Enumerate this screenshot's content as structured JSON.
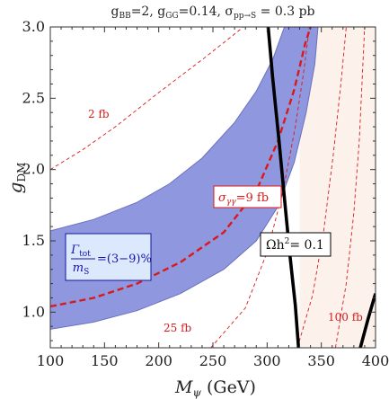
{
  "chart_data": {
    "type": "line",
    "title": "g_BB=2, g_GG=0.14, σ_pp→S = 0.3 pb",
    "title_parts": {
      "gBB_base": "g",
      "gBB_sub": "BB",
      "gBB_val": "=2, ",
      "gGG_base": "g",
      "gGG_sub": "GG",
      "gGG_val": "=0.14, ",
      "sig_base": "σ",
      "sig_sub": "pp→S",
      "sig_val": " = 0.3 pb"
    },
    "xlabel": "M_ψ (GeV)",
    "xlabel_parts": {
      "base": "M",
      "sub": "ψ",
      "rest": " (GeV)"
    },
    "ylabel": "g_DM",
    "ylabel_parts": {
      "base": "g",
      "sub": "DM"
    },
    "xlim": [
      100,
      400
    ],
    "ylim": [
      0.75,
      3.0
    ],
    "x_ticks": [
      100,
      150,
      200,
      250,
      300,
      350,
      400
    ],
    "x_tick_labels": [
      "100",
      "150",
      "200",
      "250",
      "300",
      "350",
      "400"
    ],
    "y_ticks": [
      1.0,
      1.5,
      2.0,
      2.5,
      3.0
    ],
    "y_tick_labels": [
      "1.0",
      "1.5",
      "2.0",
      "2.5",
      "3.0"
    ],
    "grid": false,
    "colors": {
      "band_fill": "#8f97df",
      "band_light_fill": "#b4b9e6",
      "band_edge": "#6a72bd",
      "excluded_fill": "#fdf1ec",
      "contour_red": "#d91a1a",
      "relic_line": "#000000",
      "box_blue_fill": "#dce8fb",
      "box_blue_border": "#1414aa"
    },
    "series": [
      {
        "name": "2 fb",
        "style": "thin-dashed-red",
        "points": [
          [
            100,
            2.0
          ],
          [
            130,
            2.14
          ],
          [
            160,
            2.3
          ],
          [
            200,
            2.54
          ],
          [
            240,
            2.77
          ],
          [
            270,
            2.95
          ],
          [
            278,
            3.0
          ]
        ]
      },
      {
        "name": "σ_γγ=9 fb",
        "style": "thick-dashed-red",
        "points": [
          [
            100,
            1.04
          ],
          [
            140,
            1.1
          ],
          [
            180,
            1.2
          ],
          [
            220,
            1.35
          ],
          [
            260,
            1.56
          ],
          [
            290,
            1.85
          ],
          [
            310,
            2.2
          ],
          [
            325,
            2.56
          ],
          [
            335,
            2.88
          ],
          [
            340,
            3.0
          ]
        ]
      },
      {
        "name": "25 fb",
        "style": "thin-dashed-red",
        "points": [
          [
            248,
            0.75
          ],
          [
            280,
            1.03
          ],
          [
            300,
            1.42
          ],
          [
            315,
            1.86
          ],
          [
            326,
            2.3
          ],
          [
            334,
            2.7
          ],
          [
            339,
            3.0
          ]
        ]
      },
      {
        "name": "",
        "style": "thin-dashed-red",
        "points": [
          [
            328,
            0.75
          ],
          [
            342,
            1.12
          ],
          [
            352,
            1.56
          ],
          [
            361,
            2.1
          ],
          [
            368,
            2.6
          ],
          [
            373,
            3.0
          ]
        ]
      },
      {
        "name": "",
        "style": "thin-dashed-red",
        "points": [
          [
            363,
            0.75
          ],
          [
            373,
            1.2
          ],
          [
            380,
            1.7
          ],
          [
            385,
            2.2
          ],
          [
            390,
            3.0
          ]
        ]
      },
      {
        "name": "Ωh²= 0.1",
        "style": "thick-solid-black",
        "points": [
          [
            301,
            3.0
          ],
          [
            305,
            2.65
          ],
          [
            311,
            2.2
          ],
          [
            316,
            1.8
          ],
          [
            321,
            1.4
          ],
          [
            326,
            1.05
          ],
          [
            329,
            0.75
          ]
        ]
      },
      {
        "name": "",
        "style": "thick-solid-black",
        "points": [
          [
            386,
            0.75
          ],
          [
            393,
            0.95
          ],
          [
            398,
            1.08
          ],
          [
            400,
            1.13
          ]
        ]
      }
    ],
    "bands": [
      {
        "name": "Γ_tot/m_S=(3−9)%",
        "upper": [
          [
            100,
            1.57
          ],
          [
            140,
            1.65
          ],
          [
            180,
            1.77
          ],
          [
            210,
            1.9
          ],
          [
            240,
            2.08
          ],
          [
            270,
            2.33
          ],
          [
            290,
            2.55
          ],
          [
            305,
            2.77
          ],
          [
            316,
            3.0
          ]
        ],
        "lower": [
          [
            100,
            0.88
          ],
          [
            140,
            0.93
          ],
          [
            180,
            1.01
          ],
          [
            220,
            1.13
          ],
          [
            260,
            1.3
          ],
          [
            290,
            1.5
          ],
          [
            310,
            1.74
          ],
          [
            325,
            2.05
          ],
          [
            336,
            2.4
          ],
          [
            344,
            2.74
          ],
          [
            347,
            3.0
          ]
        ]
      }
    ],
    "excluded_region": {
      "name": "",
      "x_from": 330,
      "x_to": 400
    },
    "labels": {
      "contour_2": "2 fb",
      "contour_25": "25 fb",
      "contour_100": "100 fb",
      "sigma_gg": "σ_γγ=9 fb",
      "sigma_parts": {
        "base": "σ",
        "sub": "γγ",
        "rest": "=9 fb"
      },
      "relic": "Ωh²= 0.1",
      "relic_parts": {
        "base": "Ωh",
        "sup": "2",
        "rest": "= 0.1"
      },
      "width": "Γ_tot/m_S=(3−9)%",
      "width_parts": {
        "num_base": "Γ",
        "num_sub": "tot",
        "den_base": "m",
        "den_sub": "S",
        "rest": "=(3−9)%"
      }
    }
  }
}
